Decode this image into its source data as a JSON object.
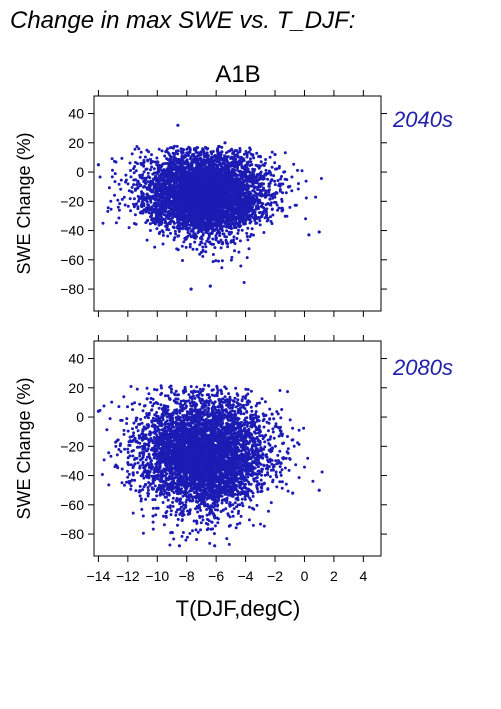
{
  "page": {
    "heading": "Change in max SWE vs. T_DJF:",
    "scenario": "A1B"
  },
  "style": {
    "point_color": "#1c1cb4",
    "axis_color": "#000000",
    "label_color": "#2020a8"
  },
  "chart_data": [
    {
      "type": "scatter",
      "panel_label": "2040s",
      "title": "",
      "xlabel": "T(DJF,degC)",
      "ylabel": "SWE Change (%)",
      "xlim": [
        -14.3,
        5.2
      ],
      "ylim": [
        -95,
        52
      ],
      "xticks": [
        -14,
        -12,
        -10,
        -8,
        -6,
        -4,
        -2,
        0,
        2,
        4
      ],
      "yticks": [
        40,
        20,
        0,
        -20,
        -40,
        -60,
        -80
      ],
      "x_tick_labels_shown": false,
      "cloud": {
        "n_points": 5200,
        "x_mean": -6.8,
        "x_sd": 2.1,
        "x_range": [
          -14.0,
          1.2
        ],
        "y_mean": -15,
        "y_sd": 15,
        "y_range": [
          -80,
          18
        ]
      },
      "outliers": [
        {
          "x": -8.6,
          "y": 32
        },
        {
          "x": -5.4,
          "y": 20
        },
        {
          "x": -14.0,
          "y": 5
        },
        {
          "x": -2.0,
          "y": 12
        },
        {
          "x": 1.0,
          "y": -41
        },
        {
          "x": 0.3,
          "y": -43
        },
        {
          "x": -7.7,
          "y": -80
        },
        {
          "x": -6.4,
          "y": -78
        }
      ]
    },
    {
      "type": "scatter",
      "panel_label": "2080s",
      "title": "",
      "xlabel": "T(DJF,degC)",
      "ylabel": "SWE Change (%)",
      "xlim": [
        -14.3,
        5.2
      ],
      "ylim": [
        -95,
        52
      ],
      "xticks": [
        -14,
        -12,
        -10,
        -8,
        -6,
        -4,
        -2,
        0,
        2,
        4
      ],
      "yticks": [
        40,
        20,
        0,
        -20,
        -40,
        -60,
        -80
      ],
      "x_tick_labels_shown": true,
      "x_tick_labels": [
        "−14",
        "−12",
        "−10",
        "−8",
        "−6",
        "−4",
        "−2",
        "0",
        "2",
        "4"
      ],
      "cloud": {
        "n_points": 5200,
        "x_mean": -6.9,
        "x_sd": 2.2,
        "x_range": [
          -14.0,
          1.2
        ],
        "y_mean": -25,
        "y_sd": 20,
        "y_range": [
          -88,
          22
        ]
      },
      "outliers": [
        {
          "x": -14.0,
          "y": 4
        },
        {
          "x": -8.5,
          "y": -88
        },
        {
          "x": -6.1,
          "y": -88
        },
        {
          "x": 1.0,
          "y": -50
        },
        {
          "x": -2.2,
          "y": 2
        },
        {
          "x": -0.8,
          "y": -52
        }
      ]
    }
  ]
}
